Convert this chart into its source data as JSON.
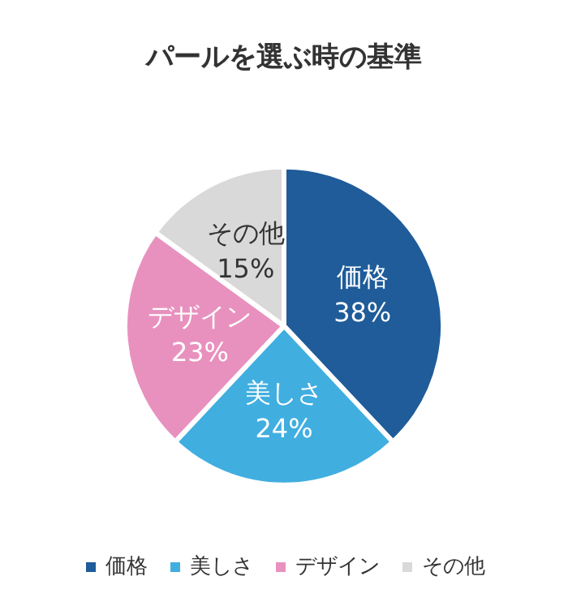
{
  "chart_data": {
    "type": "pie",
    "title": "パールを選ぶ時の基準",
    "categories": [
      "価格",
      "美しさ",
      "デザイン",
      "その他"
    ],
    "values": [
      38,
      24,
      23,
      15
    ],
    "colors": [
      "#1f5c99",
      "#41aee0",
      "#e891be",
      "#d9d9d9"
    ],
    "value_labels": [
      "38%",
      "24%",
      "23%",
      "15%"
    ],
    "legend": "bottom"
  }
}
